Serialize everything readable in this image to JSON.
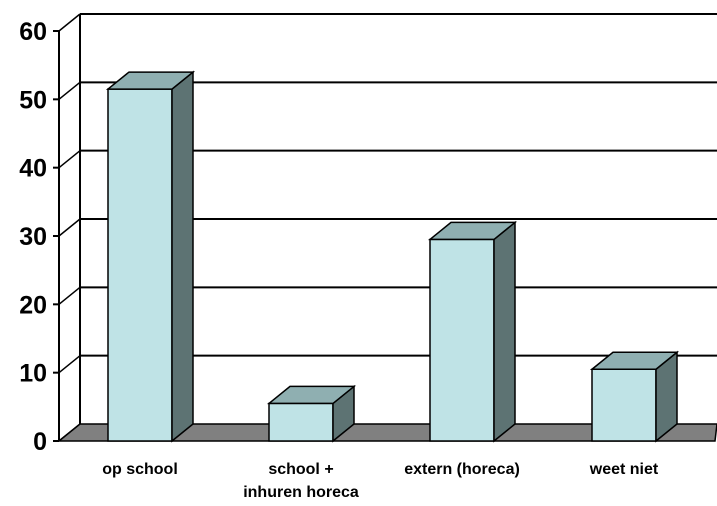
{
  "chart_data": {
    "type": "bar",
    "style": "3d-column",
    "categories": [
      [
        "op school"
      ],
      [
        "school +",
        "inhuren horeca"
      ],
      [
        "extern (horeca)"
      ],
      [
        "weet niet"
      ]
    ],
    "values": [
      51.5,
      5.5,
      29.5,
      10.5
    ],
    "ylim": [
      0,
      60
    ],
    "yticks": [
      0,
      10,
      20,
      30,
      40,
      50,
      60
    ],
    "grid": true,
    "legend": "none",
    "colors": {
      "bar_front": "#bfe3e6",
      "bar_top": "#8fafb1",
      "bar_side": "#5d7373",
      "floor": "#808080",
      "outline": "#000000"
    }
  }
}
